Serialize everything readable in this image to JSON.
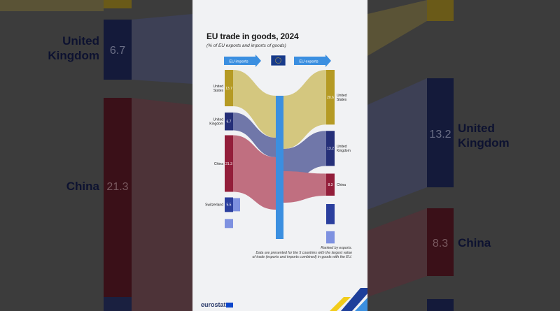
{
  "chart_data": {
    "type": "sankey",
    "title": "EU trade in goods, 2024",
    "subtitle": "(% of EU exports and imports of goods)",
    "flow_labels": {
      "imports": "EU imports",
      "exports": "EU exports"
    },
    "imports": [
      {
        "name": "United States",
        "value": 13.7
      },
      {
        "name": "United Kingdom",
        "value": 6.7
      },
      {
        "name": "China",
        "value": 21.3
      },
      {
        "name": "Switzerland",
        "value": 5.5
      },
      {
        "name": "",
        "value": 3.4
      }
    ],
    "exports": [
      {
        "name": "United States",
        "value": 20.6
      },
      {
        "name": "United Kingdom",
        "value": 13.2
      },
      {
        "name": "China",
        "value": 8.3
      },
      {
        "name": "",
        "value": 7.6
      },
      {
        "name": "",
        "value": 4.6
      }
    ],
    "colors": [
      "#b59a24",
      "#252f78",
      "#931e3a",
      "#2b3f9e",
      "#7e91e0"
    ],
    "flow_colors": [
      "#d4c77f",
      "#7077a9",
      "#c06f80"
    ],
    "eu_bar_color": "#3b8fe0"
  },
  "notes": {
    "ranked": "Ranked by exports.",
    "line1": "Data are presented for the 5 countries with the largest value",
    "line2": "of trade (exports and imports combined) in goods with the EU."
  },
  "footer": {
    "logo": "eurostat"
  },
  "background_zoom": {
    "left_label_1": "United",
    "left_label_2": "Kingdom",
    "left_value_uk": "6.7",
    "left_china": "China",
    "left_value_china": "21.3",
    "right_value_uk": "13.2",
    "right_label_1": "United",
    "right_label_2": "Kingdom",
    "right_value_china": "8.3",
    "right_china": "China"
  }
}
